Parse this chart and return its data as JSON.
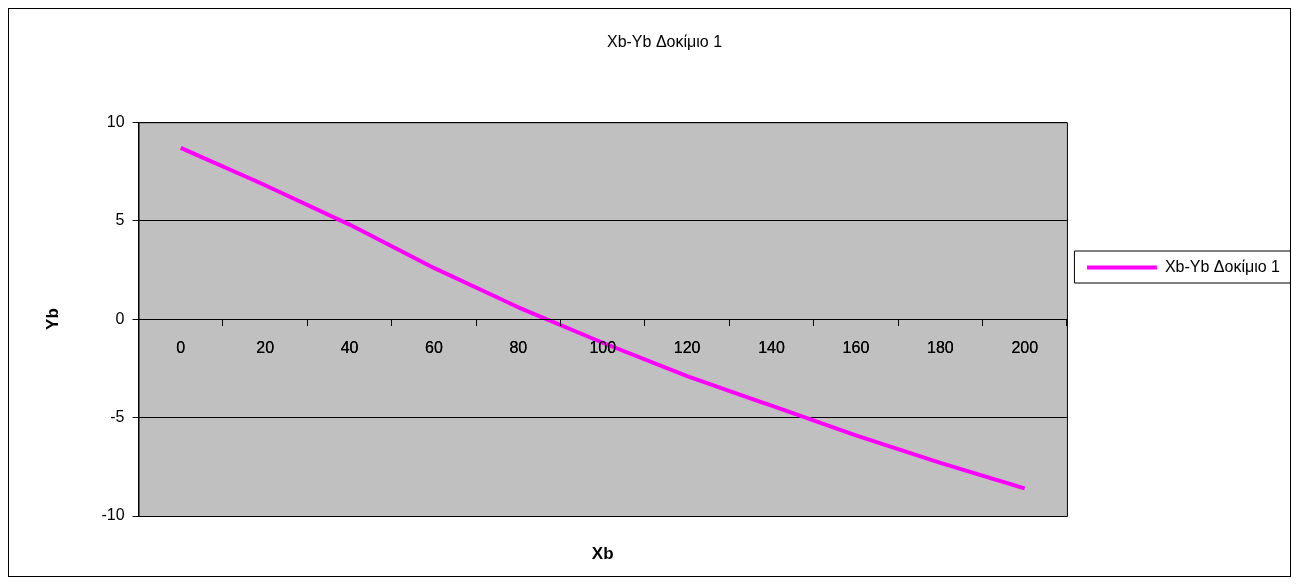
{
  "chart_data": {
    "type": "line",
    "title": "Xb-Yb Δοκίμιο 1",
    "xlabel": "Xb",
    "ylabel": "Yb",
    "categories": [
      "0",
      "20",
      "40",
      "60",
      "80",
      "100",
      "120",
      "140",
      "160",
      "180",
      "200"
    ],
    "series": [
      {
        "name": "Xb-Yb Δοκίμιο 1",
        "color": "#ff00ff",
        "values": [
          8.7,
          6.8,
          4.8,
          2.6,
          0.6,
          -1.2,
          -2.9,
          -4.4,
          -5.9,
          -7.3,
          -8.6
        ]
      }
    ],
    "ylim": [
      -10,
      10
    ],
    "yticks": [
      -10,
      -5,
      0,
      5,
      10
    ],
    "grid": "y",
    "legend": "right",
    "marker": "none"
  }
}
